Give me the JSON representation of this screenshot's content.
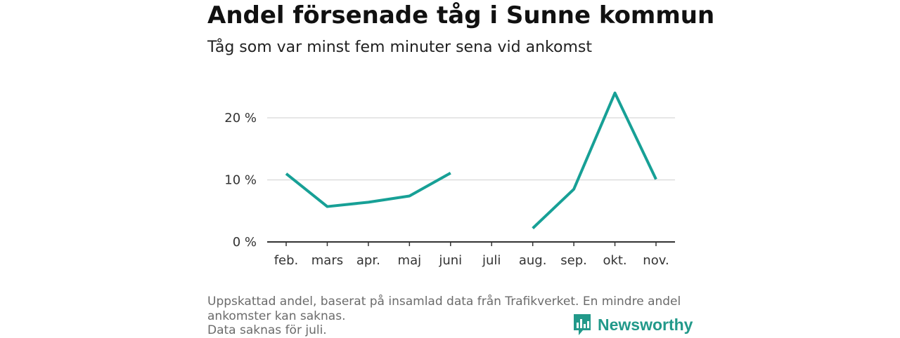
{
  "title": "Andel försenade tåg i Sunne kommun",
  "subtitle": "Tåg som var minst fem minuter sena vid ankomst",
  "footer": {
    "line1": "Uppskattad andel, baserat på insamlad data från Trafikverket. En mindre andel",
    "line2": "ankomster kan saknas.",
    "line3": "Data saknas för juli."
  },
  "brand": {
    "name": "Newsworthy",
    "icon": "newsworthy-logo-icon",
    "color": "#22998a"
  },
  "colors": {
    "line": "#17a096",
    "grid": "#dddddd",
    "axis": "#333333"
  },
  "chart_data": {
    "type": "line",
    "title": "Andel försenade tåg i Sunne kommun",
    "subtitle": "Tåg som var minst fem minuter sena vid ankomst",
    "categories": [
      "feb.",
      "mars",
      "apr.",
      "maj",
      "juni",
      "juli",
      "aug.",
      "sep.",
      "okt.",
      "nov."
    ],
    "series": [
      {
        "name": "Andel försenade tåg",
        "values": [
          11,
          5.7,
          6.4,
          7.4,
          11.1,
          null,
          2.2,
          8.5,
          24,
          10.1
        ]
      }
    ],
    "yticks": [
      0,
      10,
      20
    ],
    "ytick_labels": [
      "0 %",
      "10 %",
      "20 %"
    ],
    "ylim": [
      0,
      25
    ],
    "xlabel": "",
    "ylabel": "",
    "grid": true
  }
}
